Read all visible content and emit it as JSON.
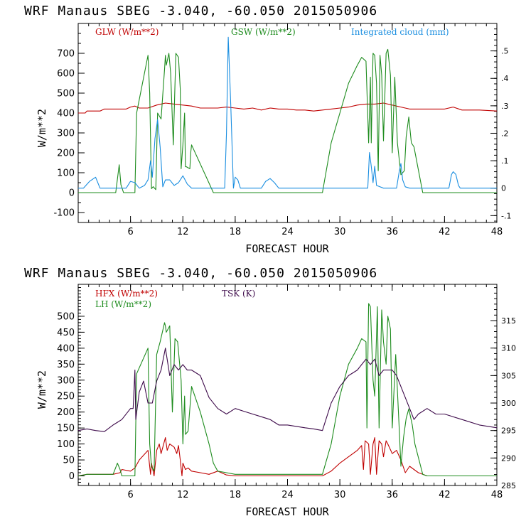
{
  "colors": {
    "red": "#c00000",
    "green": "#1e8c1e",
    "blue": "#1a8ee0",
    "purple": "#3d0a4a"
  },
  "chart_data": [
    {
      "type": "line",
      "header": "WRF  Manaus SBEG   -3.040, -60.050  2015050906",
      "xlabel": "FORECAST HOUR",
      "ylabel": "W/m**2",
      "xlim": [
        0,
        48
      ],
      "ylim": [
        -150,
        850
      ],
      "y2lim": [
        -0.125,
        0.6
      ],
      "x_ticks": [
        6,
        12,
        18,
        24,
        30,
        36,
        42,
        48
      ],
      "x_ticklabels": [
        "6",
        "12",
        "18",
        "24",
        "30",
        "36",
        "42",
        "48"
      ],
      "y_ticks": [
        -100,
        0,
        100,
        200,
        300,
        400,
        500,
        600,
        700
      ],
      "y_ticklabels": [
        "-100",
        "0",
        "100",
        "200",
        "300",
        "400",
        "500",
        "600",
        "700"
      ],
      "y2_ticks": [
        -0.1,
        0,
        0.1,
        0.2,
        0.3,
        0.4,
        0.5
      ],
      "y2_ticklabels": [
        "-.1",
        "0",
        ".1",
        ".2",
        ".3",
        ".4",
        ".5"
      ],
      "series": [
        {
          "name": "GLW (W/m**2)",
          "axis": "left",
          "color": "red",
          "x": [
            0,
            0.8,
            1,
            2.5,
            3,
            5.5,
            6,
            6.5,
            7,
            8,
            9,
            10,
            11,
            12,
            13,
            14,
            16,
            17,
            18,
            19,
            20,
            21,
            22,
            23,
            24,
            25,
            26,
            27,
            28,
            29,
            30,
            31,
            32,
            33,
            34,
            35,
            36,
            37,
            38,
            40,
            42,
            43,
            44,
            46,
            48
          ],
          "values": [
            400,
            400,
            410,
            410,
            420,
            420,
            430,
            435,
            425,
            425,
            440,
            450,
            445,
            440,
            435,
            425,
            425,
            430,
            425,
            420,
            425,
            415,
            425,
            420,
            420,
            415,
            415,
            410,
            415,
            420,
            425,
            430,
            440,
            445,
            445,
            450,
            440,
            430,
            420,
            420,
            420,
            430,
            415,
            415,
            410
          ]
        },
        {
          "name": "GSW (W/m**2)",
          "axis": "left",
          "color": "green",
          "x": [
            0,
            4.3,
            4.7,
            4.9,
            5.2,
            6.5,
            6.7,
            8.0,
            8.2,
            8.4,
            8.6,
            8.9,
            9.1,
            9.5,
            9.9,
            10.0,
            10.1,
            10.4,
            10.6,
            10.9,
            11.2,
            11.5,
            11.7,
            11.8,
            12.0,
            12.2,
            12.3,
            12.4,
            12.8,
            12.9,
            13.0,
            15.5,
            15.8,
            28.0,
            29.0,
            31.0,
            32.0,
            32.5,
            33.0,
            33.3,
            33.5,
            33.6,
            33.8,
            34.0,
            34.2,
            34.4,
            34.6,
            34.8,
            35.0,
            35.3,
            35.5,
            35.8,
            36.0,
            36.3,
            36.6,
            37.0,
            37.4,
            37.6,
            37.9,
            38.2,
            38.5,
            39.5,
            39.8,
            48
          ],
          "values": [
            0,
            0,
            140,
            40,
            0,
            0,
            400,
            690,
            500,
            20,
            30,
            15,
            400,
            370,
            620,
            690,
            640,
            700,
            600,
            240,
            700,
            680,
            520,
            120,
            240,
            400,
            130,
            130,
            120,
            200,
            240,
            0,
            0,
            0,
            250,
            550,
            640,
            680,
            660,
            250,
            580,
            250,
            700,
            690,
            550,
            110,
            690,
            590,
            260,
            700,
            720,
            590,
            200,
            580,
            250,
            90,
            110,
            280,
            380,
            250,
            230,
            0,
            0,
            0
          ]
        },
        {
          "name": "Integrated cloud (mm)",
          "axis": "right",
          "color": "blue",
          "x": [
            0,
            0.6,
            1.3,
            2.0,
            2.5,
            5.5,
            6.0,
            6.5,
            7.0,
            7.6,
            8.0,
            8.3,
            8.5,
            8.8,
            9.1,
            9.4,
            9.7,
            10.0,
            10.5,
            11.0,
            11.5,
            12.0,
            12.5,
            13.0,
            14.0,
            16.8,
            17.0,
            17.2,
            17.5,
            17.8,
            18.0,
            18.3,
            18.6,
            19.0,
            21.0,
            21.5,
            22.0,
            22.5,
            23.0,
            25.0,
            26.0,
            33.2,
            33.4,
            33.6,
            33.8,
            34.0,
            34.2,
            35.0,
            36.5,
            36.8,
            37.0,
            37.2,
            37.5,
            38.0,
            38.5,
            42.5,
            42.8,
            43.0,
            43.3,
            43.6,
            43.8,
            48
          ],
          "values": [
            0,
            0,
            0.025,
            0.04,
            0,
            0,
            0.025,
            0.02,
            0,
            0.01,
            0.03,
            0.1,
            0.04,
            0.18,
            0.25,
            0.15,
            0.005,
            0.03,
            0.03,
            0.01,
            0.02,
            0.045,
            0.015,
            0,
            0,
            0,
            0.2,
            0.55,
            0.3,
            0,
            0.04,
            0.03,
            0,
            0,
            0,
            0.025,
            0.035,
            0.02,
            0,
            0,
            0,
            0,
            0.13,
            0.08,
            0.02,
            0.08,
            0.01,
            0,
            0,
            0.06,
            0.09,
            0.03,
            0.005,
            0,
            0,
            0,
            0.05,
            0.06,
            0.05,
            0.01,
            0,
            0
          ]
        }
      ]
    },
    {
      "type": "line",
      "header": "WRF  Manaus SBEG   -3.040, -60.050  2015050906",
      "xlabel": "FORECAST HOUR",
      "ylabel": "W/m**2",
      "xlim": [
        0,
        48
      ],
      "ylim": [
        -30,
        600
      ],
      "y2lim": [
        285,
        321.6
      ],
      "x_ticks": [
        6,
        12,
        18,
        24,
        30,
        36,
        42,
        48
      ],
      "x_ticklabels": [
        "6",
        "12",
        "18",
        "24",
        "30",
        "36",
        "42",
        "48"
      ],
      "y_ticks": [
        0,
        50,
        100,
        150,
        200,
        250,
        300,
        350,
        400,
        450,
        500
      ],
      "y_ticklabels": [
        "0",
        "50",
        "100",
        "150",
        "200",
        "250",
        "300",
        "350",
        "400",
        "450",
        "500"
      ],
      "y2_ticks": [
        285,
        290,
        295,
        300,
        305,
        310,
        315
      ],
      "y2_ticklabels": [
        "285",
        "290",
        "295",
        "300",
        "305",
        "310",
        "315"
      ],
      "series": [
        {
          "name": "HFX (W/m**2)",
          "axis": "left",
          "color": "red",
          "x": [
            0,
            1,
            4,
            4.8,
            5,
            6,
            6.5,
            7,
            8,
            8.3,
            8.4,
            8.7,
            9.0,
            9.3,
            9.5,
            10.0,
            10.2,
            10.5,
            11.0,
            11.3,
            11.5,
            11.7,
            11.9,
            12.0,
            12.3,
            12.6,
            13,
            14,
            15,
            16,
            17,
            18,
            28,
            29,
            30,
            31,
            32,
            32.5,
            32.7,
            32.9,
            33.3,
            33.5,
            33.8,
            34.0,
            34.2,
            34.5,
            34.8,
            35.0,
            35.3,
            35.5,
            36.0,
            36.5,
            37.0,
            37.5,
            38,
            38.5,
            39,
            40,
            48
          ],
          "values": [
            0,
            5,
            5,
            10,
            20,
            15,
            25,
            50,
            80,
            5,
            40,
            0,
            80,
            100,
            70,
            120,
            80,
            100,
            90,
            70,
            95,
            50,
            0,
            40,
            20,
            25,
            15,
            10,
            5,
            15,
            3,
            0,
            0,
            15,
            40,
            60,
            80,
            95,
            20,
            110,
            100,
            5,
            100,
            120,
            5,
            110,
            100,
            60,
            110,
            100,
            70,
            80,
            50,
            10,
            30,
            20,
            10,
            0,
            0
          ]
        },
        {
          "name": "LH (W/m**2)",
          "axis": "left",
          "color": "green",
          "x": [
            0,
            1,
            4,
            4.5,
            4.8,
            5.0,
            6.5,
            6.7,
            8.0,
            8.2,
            8.4,
            8.7,
            9.0,
            9.4,
            9.9,
            10.0,
            10.1,
            10.3,
            10.5,
            10.8,
            11.1,
            11.4,
            11.8,
            12.0,
            12.2,
            12.3,
            12.6,
            13.0,
            14,
            15,
            15.5,
            16,
            17,
            18,
            24,
            28,
            29,
            30,
            31,
            32,
            32.5,
            33.0,
            33.1,
            33.3,
            33.5,
            33.8,
            34.0,
            34.3,
            34.5,
            34.8,
            35.0,
            35.3,
            35.5,
            35.8,
            36.0,
            36.4,
            36.8,
            37.0,
            37.3,
            37.6,
            37.9,
            38.3,
            38.6,
            39.5,
            40,
            48
          ],
          "values": [
            0,
            5,
            5,
            40,
            20,
            0,
            0,
            320,
            400,
            100,
            30,
            15,
            380,
            420,
            480,
            470,
            450,
            460,
            470,
            200,
            430,
            420,
            300,
            100,
            250,
            130,
            140,
            280,
            200,
            100,
            40,
            15,
            10,
            5,
            5,
            5,
            100,
            250,
            350,
            400,
            430,
            420,
            150,
            540,
            530,
            300,
            250,
            530,
            150,
            520,
            420,
            350,
            500,
            460,
            150,
            380,
            150,
            30,
            120,
            180,
            210,
            160,
            100,
            5,
            0,
            0
          ]
        },
        {
          "name": "TSK (K)",
          "axis": "right",
          "color": "purple",
          "x": [
            0,
            1,
            2,
            3,
            4,
            4.5,
            5,
            6,
            6.3,
            6.5,
            6.6,
            7.0,
            7.5,
            8.0,
            8.5,
            9.0,
            9.5,
            10.0,
            10.5,
            11.0,
            11.5,
            12.0,
            12.5,
            13.0,
            14,
            15,
            16,
            17,
            18,
            19,
            20,
            21,
            22,
            23,
            24,
            26,
            27,
            28,
            29,
            30,
            31,
            32,
            32.5,
            33,
            33.5,
            34.0,
            34.5,
            35.0,
            35.5,
            36,
            36.5,
            37,
            37.5,
            38,
            38.5,
            39,
            40,
            41,
            42,
            44,
            46,
            48
          ],
          "values": [
            295,
            295.3,
            295,
            294.8,
            296,
            296.5,
            297,
            299,
            299,
            306,
            297,
            302,
            304,
            300,
            300,
            304,
            306,
            310,
            305,
            307,
            306,
            307,
            306,
            306,
            305,
            301,
            299,
            298,
            299,
            298.5,
            298,
            297.5,
            297,
            296,
            296,
            295.5,
            295.3,
            295,
            300,
            303,
            305,
            306,
            307,
            308,
            307,
            308,
            305,
            306,
            306,
            306,
            305,
            303,
            301,
            299,
            297,
            298,
            299,
            298,
            298,
            297,
            296,
            295.5
          ]
        }
      ]
    }
  ]
}
